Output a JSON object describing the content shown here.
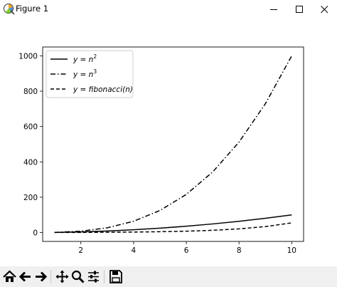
{
  "window": {
    "title": "Figure 1",
    "icon": "matplotlib-icon",
    "controls": [
      "minimize-icon",
      "maximize-icon",
      "close-icon"
    ]
  },
  "toolbar": {
    "buttons": [
      "home-icon",
      "back-arrow-icon",
      "forward-arrow-icon",
      "pan-icon",
      "zoom-icon",
      "configure-subplots-icon",
      "save-icon"
    ]
  },
  "chart_data": {
    "type": "line",
    "title": "",
    "xlabel": "",
    "ylabel": "",
    "xlim": [
      0.55,
      10.45
    ],
    "ylim": [
      -49.95,
      1049.95
    ],
    "xticks": [
      2,
      4,
      6,
      8,
      10
    ],
    "yticks": [
      0,
      200,
      400,
      600,
      800,
      1000
    ],
    "grid": false,
    "legend_position": "upper left",
    "x": [
      1,
      2,
      3,
      4,
      5,
      6,
      7,
      8,
      9,
      10
    ],
    "series": [
      {
        "name": "y = n^2",
        "legend_main": "y = n",
        "legend_sup": "2",
        "color": "#000000",
        "style": "solid",
        "values": [
          1,
          4,
          9,
          16,
          25,
          36,
          49,
          64,
          81,
          100
        ]
      },
      {
        "name": "y = n^3",
        "legend_main": "y = n",
        "legend_sup": "3",
        "color": "#000000",
        "style": "dashdot",
        "values": [
          1,
          8,
          27,
          64,
          125,
          216,
          343,
          512,
          729,
          1000
        ]
      },
      {
        "name": "y = fibonacci(n)",
        "legend_main": "y = fibonacci(n)",
        "legend_sup": "",
        "color": "#000000",
        "style": "dashed",
        "values": [
          1,
          1,
          2,
          3,
          5,
          8,
          13,
          21,
          34,
          55
        ]
      }
    ]
  }
}
